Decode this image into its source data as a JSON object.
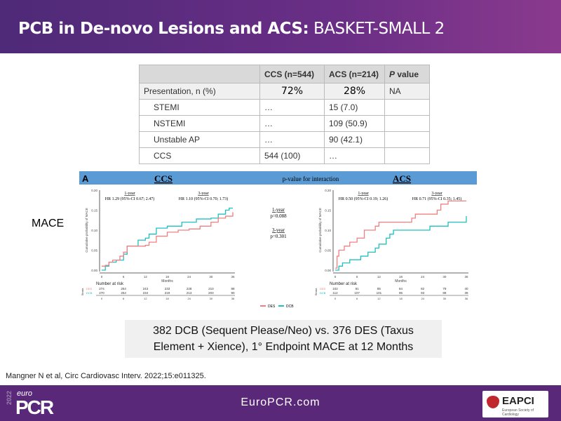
{
  "title": {
    "bold": "PCB in De-novo Lesions and ACS:",
    "rest": " BASKET-SMALL 2"
  },
  "table": {
    "headers": [
      "",
      "CCS (n=544)",
      "ACS (n=214)",
      "P value"
    ],
    "rows": [
      [
        "Presentation, n (%)",
        "72%",
        "28%",
        "NA"
      ],
      [
        "STEMI",
        "…",
        "15 (7.0)",
        ""
      ],
      [
        "NSTEMI",
        "…",
        "109 (50.9)",
        ""
      ],
      [
        "Unstable AP",
        "…",
        "90 (42.1)",
        ""
      ],
      [
        "CCS",
        "544 (100)",
        "…",
        ""
      ]
    ]
  },
  "mace_label": "MACE",
  "figure": {
    "panel": "A",
    "interaction": "p-value for interaction",
    "p1_label": "1-year",
    "p1": "p=0.088",
    "p3_label": "3-year",
    "p3": "p=0.301",
    "ylabel": "Cumulative probability of MACE",
    "xlabel": "Months",
    "xticks": [
      0,
      6,
      12,
      18,
      24,
      30,
      36
    ],
    "yticks": [
      "0.00",
      "0.05",
      "0.10",
      "0.15",
      "0.20"
    ],
    "risk_title": "Number at risk",
    "strata_label": "Strata",
    "legend": [
      "DES",
      "DCB"
    ],
    "colors": {
      "DES": "#f08080",
      "DCB": "#20c0c0",
      "bar": "#5b9bd5"
    },
    "panels": [
      {
        "name": "CCS",
        "hr1_label": "1-year",
        "hr1": "HR 1.29 (95%-CI 0.67; 2.47)",
        "hr3_label": "3-year",
        "hr3": "HR 1.10 (95%-CI 0.70; 1.73)",
        "risk": {
          "DES": [
            274,
            254,
            243,
            233,
            228,
            210,
            88
          ],
          "DCB": [
            270,
            254,
            234,
            219,
            213,
            203,
            90
          ]
        },
        "DES": [
          [
            0,
            0.01
          ],
          [
            1,
            0.012
          ],
          [
            2,
            0.02
          ],
          [
            3,
            0.025
          ],
          [
            5,
            0.035
          ],
          [
            6,
            0.045
          ],
          [
            7,
            0.06
          ],
          [
            12,
            0.062
          ],
          [
            13,
            0.07
          ],
          [
            15,
            0.085
          ],
          [
            18,
            0.095
          ],
          [
            21,
            0.1
          ],
          [
            24,
            0.103
          ],
          [
            27,
            0.11
          ],
          [
            30,
            0.12
          ],
          [
            32,
            0.13
          ],
          [
            34,
            0.135
          ],
          [
            36,
            0.145
          ]
        ],
        "DCB": [
          [
            0,
            0
          ],
          [
            1,
            0.01
          ],
          [
            2,
            0.02
          ],
          [
            4,
            0.025
          ],
          [
            6,
            0.04
          ],
          [
            7,
            0.06
          ],
          [
            10,
            0.075
          ],
          [
            12,
            0.08
          ],
          [
            13,
            0.09
          ],
          [
            15,
            0.105
          ],
          [
            18,
            0.11
          ],
          [
            22,
            0.12
          ],
          [
            26,
            0.128
          ],
          [
            30,
            0.13
          ],
          [
            32,
            0.14
          ],
          [
            34,
            0.15
          ],
          [
            35,
            0.155
          ],
          [
            36,
            0.155
          ]
        ]
      },
      {
        "name": "ACS",
        "hr1_label": "1-year",
        "hr1": "HR 0.50 (95%-CI 0.19; 1.26)",
        "hr3_label": "3-year",
        "hr3": "HR 0.71 (95%-CI 0.35; 1.45)",
        "risk": {
          "DES": [
            102,
            91,
            85,
            84,
            82,
            79,
            40
          ],
          "DCB": [
            112,
            107,
            101,
            96,
            93,
            89,
            39
          ]
        },
        "DES": [
          [
            0,
            0.005
          ],
          [
            0.5,
            0.035
          ],
          [
            1,
            0.05
          ],
          [
            2.5,
            0.06
          ],
          [
            4,
            0.07
          ],
          [
            6,
            0.08
          ],
          [
            8,
            0.1
          ],
          [
            11,
            0.11
          ],
          [
            12,
            0.12
          ],
          [
            21,
            0.13
          ],
          [
            22,
            0.14
          ],
          [
            28,
            0.15
          ],
          [
            29,
            0.165
          ],
          [
            31,
            0.173
          ],
          [
            36,
            0.173
          ]
        ],
        "DCB": [
          [
            0,
            0
          ],
          [
            1,
            0.01
          ],
          [
            2,
            0.018
          ],
          [
            4,
            0.026
          ],
          [
            7,
            0.035
          ],
          [
            9,
            0.045
          ],
          [
            11,
            0.055
          ],
          [
            12,
            0.065
          ],
          [
            14,
            0.08
          ],
          [
            15,
            0.09
          ],
          [
            16,
            0.1
          ],
          [
            26,
            0.11
          ],
          [
            31,
            0.12
          ],
          [
            35,
            0.12
          ],
          [
            36,
            0.135
          ]
        ]
      }
    ]
  },
  "caption": {
    "line1": "382 DCB (Sequent Please/Neo) vs. 376 DES (Taxus",
    "line2": "Element + Xience), 1° Endpoint MACE at 12 Months"
  },
  "citation": "Mangner N et al, Circ Cardiovasc Interv. 2022;15:e011325.",
  "footer": {
    "url": "EuroPCR.com",
    "logo_year": "2022",
    "logo_euro": "euro",
    "logo_pcr": "PCR",
    "partner": "EAPCI",
    "partner_sub": "European Society of Cardiology"
  }
}
